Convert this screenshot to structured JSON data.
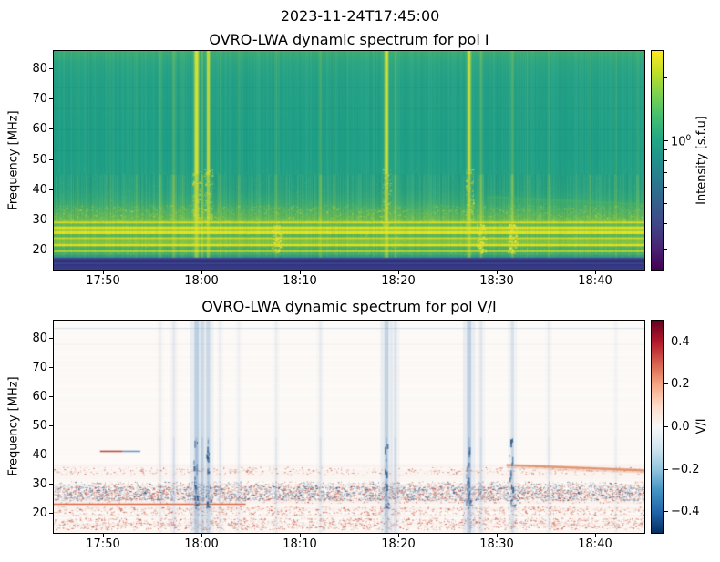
{
  "figure": {
    "suptitle": "2023-11-24T17:45:00",
    "background": "#ffffff",
    "text_color": "#000000"
  },
  "chart_data": [
    {
      "type": "heatmap",
      "title": "OVRO-LWA dynamic spectrum for pol I",
      "ylabel": "Frequency [MHz]",
      "x_start_time": "17:45",
      "x_tick_labels": [
        "17:50",
        "18:00",
        "18:10",
        "18:20",
        "18:30",
        "18:40"
      ],
      "x_tick_minutes": [
        5,
        15,
        25,
        35,
        45,
        55
      ],
      "x_range_minutes": [
        0,
        60
      ],
      "y_tick_values": [
        20,
        30,
        40,
        50,
        60,
        70,
        80
      ],
      "y_range_mhz": [
        13.4,
        86
      ],
      "grid": false,
      "colormap": "viridis",
      "colormap_stops": [
        "#440154",
        "#482475",
        "#414487",
        "#355f8d",
        "#2a788e",
        "#21918c",
        "#22a884",
        "#44bf70",
        "#7ad151",
        "#bddf26",
        "#fde725"
      ],
      "colorbar": {
        "label": "Intensity [s.f.u]",
        "scale": "log",
        "vmin": 0.24,
        "vmax": 2.7,
        "major_tick": {
          "value": 1,
          "mantissa": "10",
          "exponent": "0"
        },
        "minor_tick_values": [
          2,
          0.9,
          0.8,
          0.7,
          0.6,
          0.5,
          0.4,
          0.3
        ]
      },
      "background_gradient": [
        [
          86,
          "#3cad74"
        ],
        [
          82,
          "#2ba684"
        ],
        [
          76,
          "#24a287"
        ],
        [
          55,
          "#1fa087"
        ],
        [
          46,
          "#21a186"
        ],
        [
          40,
          "#28a381"
        ],
        [
          37,
          "#31a87a"
        ],
        [
          34.5,
          "#3fae71"
        ],
        [
          32.5,
          "#4fb366"
        ],
        [
          30.5,
          "#61ba5a"
        ],
        [
          29.5,
          "#7dc24b"
        ]
      ],
      "horizontal_bands": [
        [
          29.3,
          28.7,
          "#dde125"
        ],
        [
          28.7,
          27.7,
          "#60b95c"
        ],
        [
          27.7,
          26.9,
          "#e2e31f"
        ],
        [
          26.9,
          26.1,
          "#a0d03b"
        ],
        [
          26.1,
          25.2,
          "#e8e41a"
        ],
        [
          25.2,
          24.1,
          "#55b562"
        ],
        [
          24.1,
          23.5,
          "#d0dd26"
        ],
        [
          23.5,
          21.9,
          "#7fc247"
        ],
        [
          21.9,
          21.1,
          "#e2e31f"
        ],
        [
          21.1,
          19.7,
          "#4ab167"
        ],
        [
          19.7,
          19.2,
          "#c8da2a"
        ],
        [
          19.2,
          18.4,
          "#42ae6e"
        ],
        [
          18.4,
          17.4,
          "#2f9f81"
        ]
      ],
      "dark_band": {
        "f_top": 17.4,
        "base": "#3b408d",
        "stripes": [
          [
            17.4,
            17.1,
            "#4a509a"
          ],
          [
            16.9,
            16.3,
            "#333679"
          ],
          [
            16.3,
            15.7,
            "#2e2f74"
          ],
          [
            15.7,
            15.2,
            "#3f4592"
          ],
          [
            15.1,
            14.6,
            "#31327b"
          ],
          [
            14.2,
            13.8,
            "#343780"
          ]
        ]
      },
      "faint_rows_mhz": [
        74,
        67,
        60,
        53
      ],
      "speckle_zone": {
        "f1": 34.8,
        "f2": 29.3
      },
      "vertical_streaks": [
        {
          "t": 2.4,
          "s": 0.18,
          "w": 2
        },
        {
          "t": 5.8,
          "s": 0.14,
          "w": 1.5
        },
        {
          "t": 8.4,
          "s": 0.2,
          "w": 2
        },
        {
          "t": 10.8,
          "s": 0.38,
          "w": 2
        },
        {
          "t": 12.2,
          "s": 0.5,
          "w": 2.5
        },
        {
          "t": 13.1,
          "s": 0.25,
          "w": 1.5
        },
        {
          "t": 14.5,
          "s": 1.0,
          "w": 4,
          "blob": true
        },
        {
          "t": 15.1,
          "s": 0.55,
          "w": 2
        },
        {
          "t": 15.7,
          "s": 0.85,
          "w": 3,
          "blob": true
        },
        {
          "t": 16.9,
          "s": 0.3,
          "w": 1.5
        },
        {
          "t": 18.8,
          "s": 0.25,
          "w": 2
        },
        {
          "t": 22.6,
          "s": 0.3,
          "w": 2,
          "lowblob": true
        },
        {
          "t": 27.1,
          "s": 0.45,
          "w": 2
        },
        {
          "t": 28.5,
          "s": 0.2,
          "w": 1.5
        },
        {
          "t": 33.8,
          "s": 0.95,
          "w": 3.5,
          "blob": true
        },
        {
          "t": 34.7,
          "s": 0.5,
          "w": 2
        },
        {
          "t": 42.2,
          "s": 0.9,
          "w": 3,
          "blob": true
        },
        {
          "t": 43.4,
          "s": 0.55,
          "w": 2.5,
          "lowblob": true
        },
        {
          "t": 46.6,
          "s": 0.5,
          "w": 2.5,
          "lowblob": true
        },
        {
          "t": 48.1,
          "s": 0.2,
          "w": 1.5
        },
        {
          "t": 50.3,
          "s": 0.3,
          "w": 2
        },
        {
          "t": 54.5,
          "s": 0.2,
          "w": 1.5
        },
        {
          "t": 57.1,
          "s": 0.25,
          "w": 2
        },
        {
          "t": 59.3,
          "s": 0.2,
          "w": 2
        }
      ],
      "drift_feature": {
        "t1": 44,
        "f1": 37.5,
        "t2": 60,
        "f2": 35.0,
        "color": "#52b85e",
        "alpha": 0.5
      }
    },
    {
      "type": "heatmap",
      "title": "OVRO-LWA dynamic spectrum for pol V/I",
      "ylabel": "Frequency [MHz]",
      "x_start_time": "17:45",
      "x_tick_labels": [
        "17:50",
        "18:00",
        "18:10",
        "18:20",
        "18:30",
        "18:40"
      ],
      "x_tick_minutes": [
        5,
        15,
        25,
        35,
        45,
        55
      ],
      "x_range_minutes": [
        0,
        60
      ],
      "y_tick_values": [
        20,
        30,
        40,
        50,
        60,
        70,
        80
      ],
      "y_range_mhz": [
        13.4,
        86
      ],
      "grid": false,
      "colormap": "RdBu_r",
      "colormap_stops": [
        "#053061",
        "#2166ac",
        "#4393c3",
        "#92c5de",
        "#d1e5f0",
        "#f7f7f7",
        "#fddbc7",
        "#f4a582",
        "#d6604d",
        "#b2182b",
        "#67001f"
      ],
      "colorbar": {
        "label": "V/I",
        "scale": "linear",
        "vmin": -0.5,
        "vmax": 0.5,
        "tick_values": [
          0.4,
          0.2,
          0.0,
          -0.2,
          -0.4
        ],
        "tick_labels": [
          "0.4",
          "0.2",
          "0.0",
          "−0.2",
          "−0.4"
        ]
      },
      "background": "#fdfbf9",
      "faint_rows_mhz": [
        83.5,
        78
      ],
      "speckle_bands": [
        {
          "f1": 36,
          "f2": 33.3,
          "density": 0.18,
          "palette": "warm"
        },
        {
          "f1": 31,
          "f2": 29.4,
          "density": 0.35,
          "palette": "mix"
        },
        {
          "f1": 29.4,
          "f2": 24.5,
          "density": 1.0,
          "palette": "mix"
        },
        {
          "f1": 24.2,
          "f2": 23.6,
          "density": 0.2,
          "palette": "warm"
        },
        {
          "f1": 22.5,
          "f2": 19.6,
          "density": 0.3,
          "palette": "warm"
        },
        {
          "f1": 18.6,
          "f2": 14.6,
          "density": 0.4,
          "palette": "warm"
        }
      ],
      "lines": [
        {
          "f": 23.2,
          "t1": 0,
          "t2": 19.5,
          "color": "#d95f3b",
          "alpha": 0.95,
          "w": 1.6
        },
        {
          "f": 41.3,
          "t1": 4.7,
          "t2": 7.0,
          "color": "#b03a2e",
          "alpha": 0.9,
          "w": 1.6
        },
        {
          "f": 41.3,
          "t1": 7.0,
          "t2": 8.8,
          "color": "#4a7fb5",
          "alpha": 0.8,
          "w": 1.6
        }
      ],
      "drift_feature": {
        "t1": 46,
        "f1": 36.6,
        "t2": 60,
        "f2": 34.8,
        "color": "#e08a5f",
        "alpha": 0.85
      },
      "vertical_streaks": [
        {
          "t": 10.8,
          "s": 0.18
        },
        {
          "t": 12.2,
          "s": 0.3
        },
        {
          "t": 14.5,
          "s": 0.85,
          "dark": true
        },
        {
          "t": 15.1,
          "s": 0.5
        },
        {
          "t": 15.7,
          "s": 0.65,
          "dark": true
        },
        {
          "t": 16.9,
          "s": 0.2
        },
        {
          "t": 18.8,
          "s": 0.15
        },
        {
          "t": 22.6,
          "s": 0.2
        },
        {
          "t": 27.1,
          "s": 0.25
        },
        {
          "t": 33.8,
          "s": 0.8,
          "dark": true
        },
        {
          "t": 34.7,
          "s": 0.4
        },
        {
          "t": 42.2,
          "s": 0.85,
          "dark": true
        },
        {
          "t": 43.4,
          "s": 0.35
        },
        {
          "t": 46.6,
          "s": 0.45,
          "dark": true
        },
        {
          "t": 50.3,
          "s": 0.2
        },
        {
          "t": 57.1,
          "s": 0.12
        }
      ]
    }
  ]
}
